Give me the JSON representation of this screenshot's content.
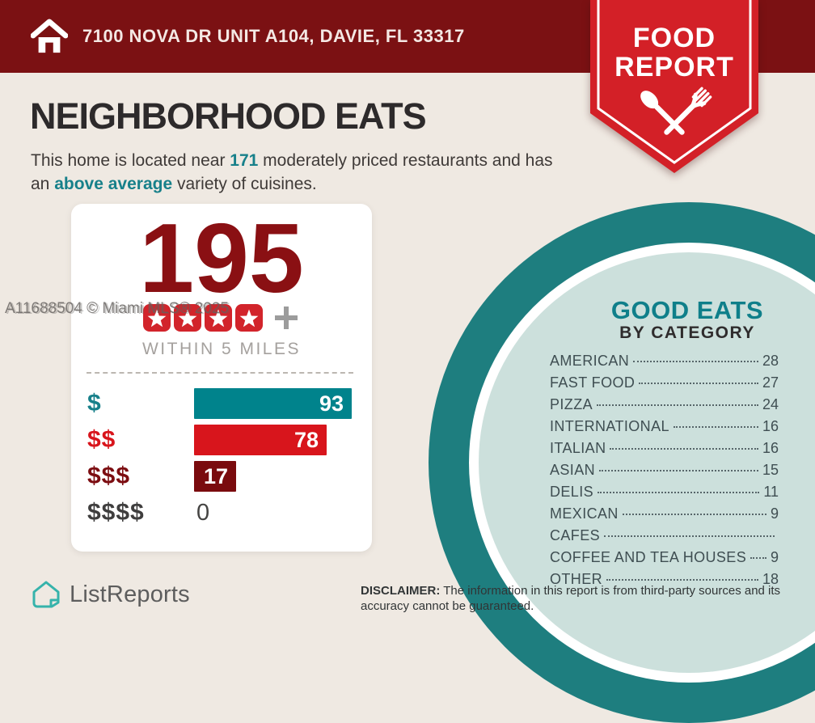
{
  "header": {
    "address": "7100 NOVA DR UNIT A104, DAVIE, FL 33317"
  },
  "badge": {
    "line1": "FOOD",
    "line2": "REPORT"
  },
  "title": "NEIGHBORHOOD EATS",
  "subtitle": {
    "part1": "This home is located near ",
    "count": "171",
    "part2": " moderately priced restaurants and has an ",
    "highlight": "above average",
    "part3": " variety of cuisines."
  },
  "watermark": "A11688504 © Miami MLS® 2025",
  "summary_card": {
    "total": "195",
    "star_count": 4,
    "radius_label": "WITHIN 5 MILES"
  },
  "chart_data": {
    "type": "bar",
    "title": "",
    "categories": [
      "$",
      "$$",
      "$$$",
      "$$$$"
    ],
    "values": [
      93,
      78,
      17,
      0
    ],
    "bar_colors": [
      "#00838c",
      "#d8151c",
      "#7a0b0e",
      null
    ],
    "label_colors": [
      "#17808a",
      "#d8151c",
      "#7c0d11",
      "#3f3e3e"
    ],
    "xlim": [
      0,
      93
    ],
    "orientation": "horizontal",
    "value_labels_inside_bars": true
  },
  "good_eats": {
    "title": "GOOD EATS",
    "subtitle": "BY CATEGORY",
    "categories": [
      {
        "label": "AMERICAN",
        "value": "28"
      },
      {
        "label": "FAST FOOD",
        "value": "27"
      },
      {
        "label": "PIZZA",
        "value": "24"
      },
      {
        "label": "INTERNATIONAL",
        "value": "16"
      },
      {
        "label": "ITALIAN",
        "value": "16"
      },
      {
        "label": "ASIAN",
        "value": "15"
      },
      {
        "label": "DELIS",
        "value": "11"
      },
      {
        "label": "MEXICAN",
        "value": "9"
      },
      {
        "label": "CAFES",
        "value": ""
      },
      {
        "label": "COFFEE AND TEA HOUSES",
        "value": "9"
      },
      {
        "label": "OTHER",
        "value": "18"
      }
    ]
  },
  "footer": {
    "logo_text": "ListReports",
    "disclaimer_bold": "DISCLAIMER:",
    "disclaimer_text": " The information in this report is from third-party sources and its accuracy cannot be guaranteed."
  },
  "colors": {
    "background": "#efe9e2",
    "header_maroon": "#7b1113",
    "badge_red": "#d32027",
    "accent_teal": "#17808a",
    "total_maroon": "#8a1013",
    "circle_teal": "#1e7e7f",
    "circle_mint": "#cce0dc",
    "star_red": "#d2242b"
  }
}
